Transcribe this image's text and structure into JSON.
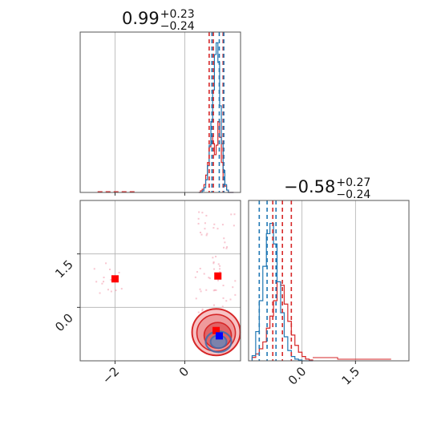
{
  "chart_data": {
    "type": "corner",
    "colors": {
      "series_a": "#1f77b4",
      "series_b": "#d62728",
      "marker": "#ff0000",
      "truth": "#0000ff"
    },
    "parameters": [
      {
        "median": "0.99",
        "upper": "+0.23",
        "lower": "−0.24"
      },
      {
        "median": "−0.58",
        "upper": "+0.27",
        "lower": "−0.24"
      }
    ],
    "x_ticks": {
      "param1": [
        "−2",
        "0"
      ],
      "param2": [
        "0.0",
        "1.5"
      ]
    },
    "y_ticks": {
      "param2": [
        "1.5",
        "0.0"
      ]
    },
    "ranges": {
      "param1": [
        -3.0,
        1.6
      ],
      "param2": [
        -1.5,
        3.0
      ]
    },
    "grid": true,
    "hist_param1": {
      "bins": [
        0.4,
        0.45,
        0.5,
        0.55,
        0.6,
        0.65,
        0.7,
        0.75,
        0.8,
        0.85,
        0.9,
        0.95,
        1.0,
        1.05,
        1.1,
        1.15,
        1.2,
        1.25,
        1.3,
        1.35,
        1.4
      ],
      "red": [
        0,
        2,
        4,
        10,
        22,
        38,
        58,
        72,
        62,
        48,
        60,
        90,
        70,
        38,
        18,
        8,
        3,
        0,
        0,
        0
      ],
      "blue": [
        0,
        0,
        2,
        6,
        16,
        34,
        60,
        90,
        130,
        175,
        190,
        165,
        110,
        62,
        28,
        10,
        3,
        0,
        0,
        0
      ],
      "quantiles_red": [
        0.7,
        0.82,
        1.1
      ],
      "quantiles_blue": [
        0.78,
        0.99,
        1.12
      ]
    },
    "hist_param2": {
      "bins": [
        -1.4,
        -1.3,
        -1.2,
        -1.1,
        -1.0,
        -0.9,
        -0.8,
        -0.7,
        -0.6,
        -0.5,
        -0.4,
        -0.3,
        -0.2,
        -0.1,
        0.0,
        0.1,
        0.2,
        0.3
      ],
      "red": [
        4,
        8,
        14,
        22,
        38,
        52,
        70,
        92,
        88,
        66,
        46,
        30,
        18,
        10,
        5,
        2,
        1
      ],
      "blue": [
        6,
        34,
        70,
        110,
        148,
        160,
        136,
        92,
        56,
        28,
        12,
        5,
        2,
        1,
        0,
        0,
        0
      ],
      "quantiles_red": [
        -0.82,
        -0.55,
        -0.3
      ],
      "quantiles_blue": [
        -1.2,
        -0.98,
        -0.73
      ],
      "red_tail_end": 2.5
    },
    "markers": [
      {
        "x": -2.0,
        "y": 0.8,
        "kind": "square"
      },
      {
        "x": 0.95,
        "y": 0.88,
        "kind": "square"
      },
      {
        "x": 0.9,
        "y": -0.65,
        "kind": "square"
      },
      {
        "x": 0.99,
        "y": -0.8,
        "kind": "truth"
      }
    ],
    "contour_center": {
      "x": 0.9,
      "y": -0.65
    }
  }
}
